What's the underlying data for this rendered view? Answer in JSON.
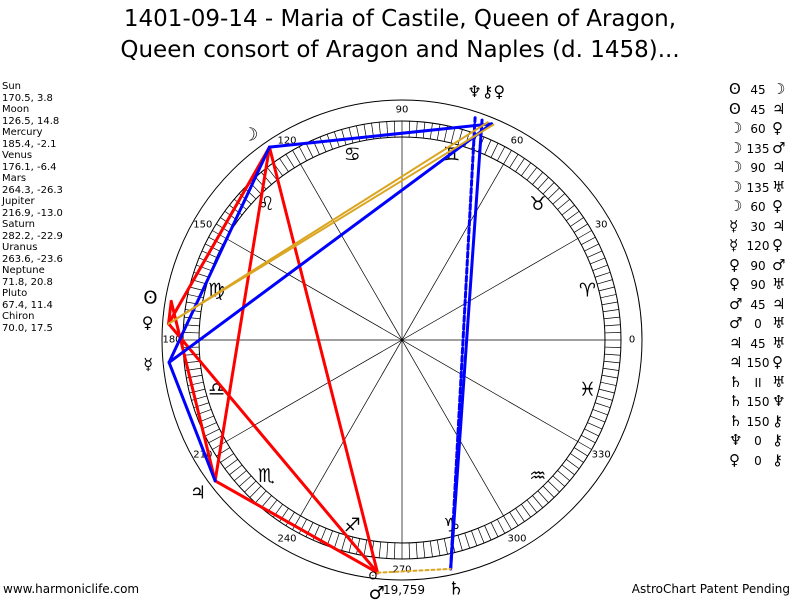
{
  "title": {
    "line1": "1401-09-14 - Maria of Castile, Queen of Aragon,",
    "line2": "Queen consort of Aragon and Naples (d. 1458)..."
  },
  "planets": [
    {
      "name": "Sun",
      "values": "170.5, 3.8"
    },
    {
      "name": "Moon",
      "values": "126.5, 14.8"
    },
    {
      "name": "Mercury",
      "values": "185.4, -2.1"
    },
    {
      "name": "Venus",
      "values": "176.1, -6.4"
    },
    {
      "name": "Mars",
      "values": "264.3, -26.3"
    },
    {
      "name": "Jupiter",
      "values": "216.9, -13.0"
    },
    {
      "name": "Saturn",
      "values": "282.2, -22.9"
    },
    {
      "name": "Uranus",
      "values": "263.6, -23.6"
    },
    {
      "name": "Neptune",
      "values": "71.8, 20.8"
    },
    {
      "name": "Pluto",
      "values": "67.4, 11.4"
    },
    {
      "name": "Chiron",
      "values": "70.0, 17.5"
    }
  ],
  "aspects": [
    {
      "p1": "ʘ",
      "angle": "45",
      "p2": "☽"
    },
    {
      "p1": "ʘ",
      "angle": "45",
      "p2": "♃"
    },
    {
      "p1": "☽",
      "angle": "60",
      "p2": "♀"
    },
    {
      "p1": "☽",
      "angle": "135",
      "p2": "♂"
    },
    {
      "p1": "☽",
      "angle": "90",
      "p2": "♃"
    },
    {
      "p1": "☽",
      "angle": "135",
      "p2": "♅"
    },
    {
      "p1": "☽",
      "angle": "60",
      "p2": "♀"
    },
    {
      "p1": "☿",
      "angle": "30",
      "p2": "♃"
    },
    {
      "p1": "☿",
      "angle": "120",
      "p2": "♀"
    },
    {
      "p1": "♀",
      "angle": "90",
      "p2": "♂"
    },
    {
      "p1": "♀",
      "angle": "90",
      "p2": "♅"
    },
    {
      "p1": "♂",
      "angle": "45",
      "p2": "♃"
    },
    {
      "p1": "♂",
      "angle": "0",
      "p2": "♅"
    },
    {
      "p1": "♃",
      "angle": "45",
      "p2": "♅"
    },
    {
      "p1": "♃",
      "angle": "150",
      "p2": "♀"
    },
    {
      "p1": "♄",
      "angle": "II",
      "p2": "♅"
    },
    {
      "p1": "♄",
      "angle": "150",
      "p2": "♆"
    },
    {
      "p1": "♄",
      "angle": "150",
      "p2": "⚷"
    },
    {
      "p1": "♆",
      "angle": "0",
      "p2": "⚷"
    },
    {
      "p1": "♀",
      "angle": "0",
      "p2": "⚷"
    }
  ],
  "wheel": {
    "degree_labels": [
      "0",
      "30",
      "60",
      "90",
      "120",
      "150",
      "180",
      "210",
      "240",
      "270",
      "300",
      "330"
    ],
    "signs": [
      "♈",
      "♉",
      "♊",
      "♋",
      "♌",
      "♍",
      "♎",
      "♏",
      "♐",
      "♑",
      "♒",
      "♓"
    ],
    "planet_glyphs": {
      "sun": "ʘ",
      "moon": "☽",
      "mercury": "☿",
      "venus": "♀",
      "mars": "♂",
      "jupiter": "♃",
      "saturn": "♄",
      "uranus": "♅",
      "neptune": "♆",
      "pluto": "♀",
      "chiron": "⚷"
    },
    "top_cluster_label": "♆⚷♀",
    "bottom_extra": "ʘ",
    "bottom_number": "19,759",
    "line_colors": {
      "red": "#ff0000",
      "blue": "#0000ff",
      "gold": "#daa520"
    }
  },
  "footer": {
    "left": "www.harmoniclife.com",
    "right": "AstroChart Patent Pending"
  }
}
